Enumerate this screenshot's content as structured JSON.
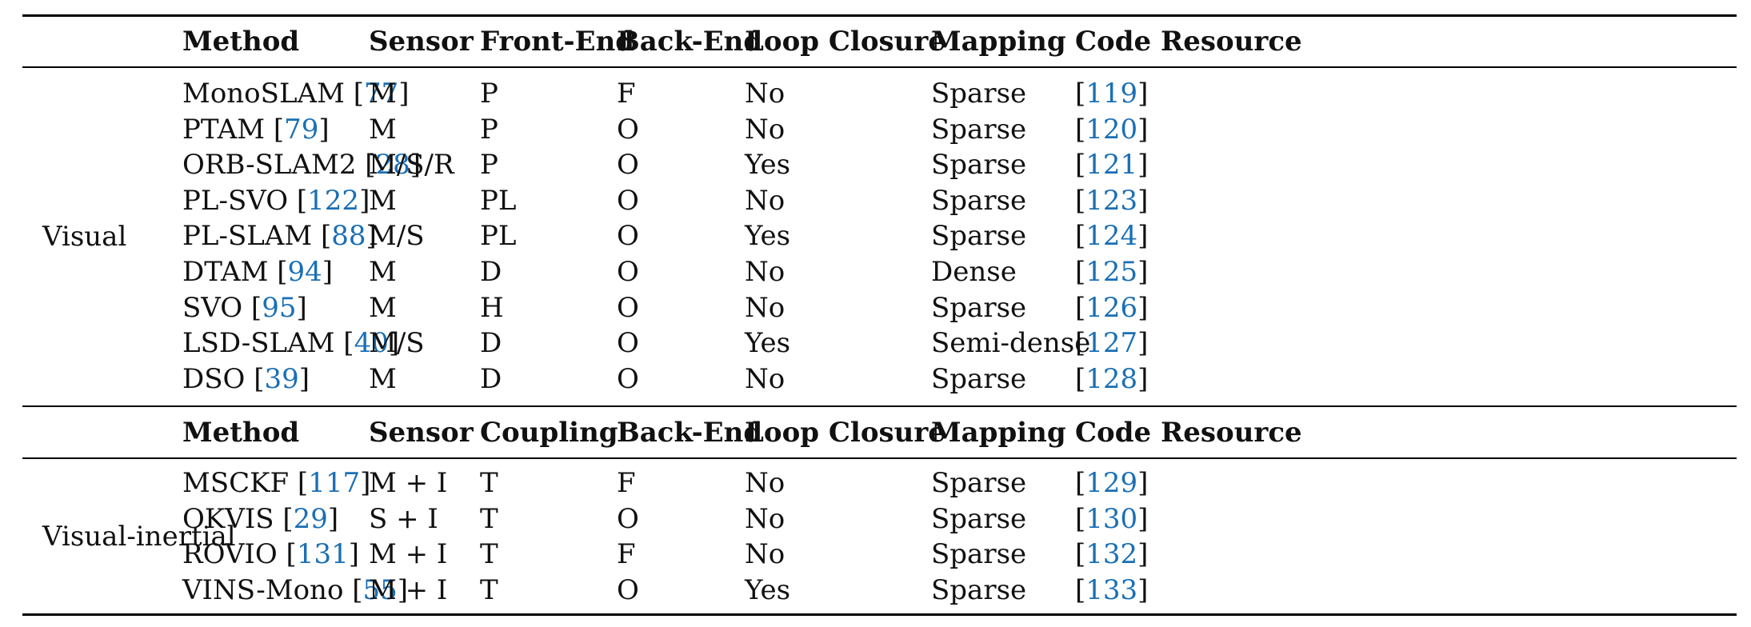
{
  "sections": [
    {
      "group": "Visual",
      "headers": [
        "Method",
        "Sensor",
        "Front-End",
        "Back-End",
        "Loop Closure",
        "Mapping",
        "Code Resource"
      ],
      "rows": [
        {
          "method": "MonoSLAM",
          "method_ref": "77",
          "sensor": "M",
          "frontend": "P",
          "backend": "F",
          "loop": "No",
          "mapping": "Sparse",
          "code": "119"
        },
        {
          "method": "PTAM",
          "method_ref": "79",
          "sensor": "M",
          "frontend": "P",
          "backend": "O",
          "loop": "No",
          "mapping": "Sparse",
          "code": "120"
        },
        {
          "method": "ORB-SLAM2",
          "method_ref": "28",
          "sensor": "M/S/R",
          "frontend": "P",
          "backend": "O",
          "loop": "Yes",
          "mapping": "Sparse",
          "code": "121"
        },
        {
          "method": "PL-SVO",
          "method_ref": "122",
          "sensor": "M",
          "frontend": "PL",
          "backend": "O",
          "loop": "No",
          "mapping": "Sparse",
          "code": "123"
        },
        {
          "method": "PL-SLAM",
          "method_ref": "88",
          "sensor": "M/S",
          "frontend": "PL",
          "backend": "O",
          "loop": "Yes",
          "mapping": "Sparse",
          "code": "124"
        },
        {
          "method": "DTAM",
          "method_ref": "94",
          "sensor": "M",
          "frontend": "D",
          "backend": "O",
          "loop": "No",
          "mapping": "Dense",
          "code": "125"
        },
        {
          "method": "SVO",
          "method_ref": "95",
          "sensor": "M",
          "frontend": "H",
          "backend": "O",
          "loop": "No",
          "mapping": "Sparse",
          "code": "126"
        },
        {
          "method": "LSD-SLAM",
          "method_ref": "40",
          "sensor": "M/S",
          "frontend": "D",
          "backend": "O",
          "loop": "Yes",
          "mapping": "Semi-dense",
          "code": "127"
        },
        {
          "method": "DSO",
          "method_ref": "39",
          "sensor": "M",
          "frontend": "D",
          "backend": "O",
          "loop": "No",
          "mapping": "Sparse",
          "code": "128"
        }
      ]
    },
    {
      "group": "Visual-inertial",
      "headers": [
        "Method",
        "Sensor",
        "Coupling",
        "Back-End",
        "Loop Closure",
        "Mapping",
        "Code Resource"
      ],
      "rows": [
        {
          "method": "MSCKF",
          "method_ref": "117",
          "sensor": "M + I",
          "frontend": "T",
          "backend": "F",
          "loop": "No",
          "mapping": "Sparse",
          "code": "129"
        },
        {
          "method": "OKVIS",
          "method_ref": "29",
          "sensor": "S + I",
          "frontend": "T",
          "backend": "O",
          "loop": "No",
          "mapping": "Sparse",
          "code": "130"
        },
        {
          "method": "ROVIO",
          "method_ref": "131",
          "sensor": "M + I",
          "frontend": "T",
          "backend": "F",
          "loop": "No",
          "mapping": "Sparse",
          "code": "132"
        },
        {
          "method": "VINS-Mono",
          "method_ref": "55",
          "sensor": "M + I",
          "frontend": "T",
          "backend": "O",
          "loop": "Yes",
          "mapping": "Sparse",
          "code": "133"
        }
      ]
    }
  ],
  "colors": {
    "reference_link": "#1a6fb5",
    "text": "#111111",
    "rule": "#000000"
  }
}
